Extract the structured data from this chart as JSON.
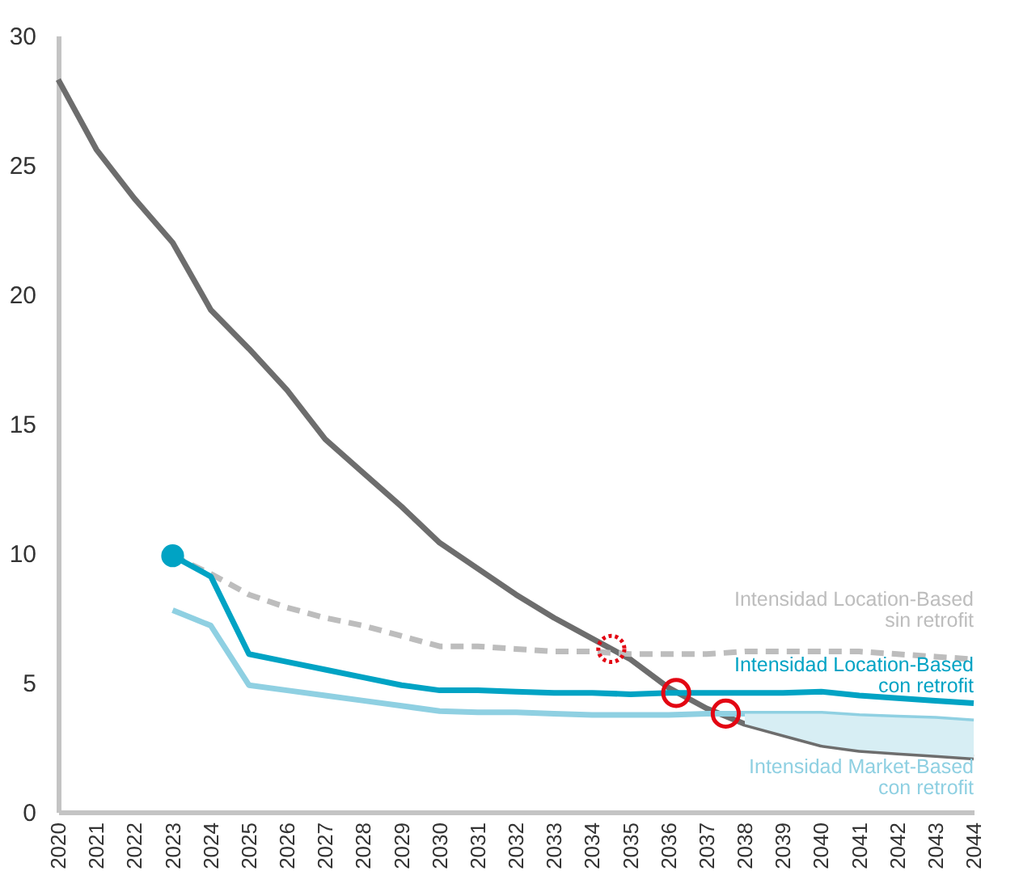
{
  "chart_data": {
    "type": "line",
    "x": [
      2020,
      2021,
      2022,
      2023,
      2024,
      2025,
      2026,
      2027,
      2028,
      2029,
      2030,
      2031,
      2032,
      2033,
      2034,
      2035,
      2036,
      2037,
      2038,
      2039,
      2040,
      2041,
      2042,
      2043,
      2044
    ],
    "xlim": [
      2020,
      2044
    ],
    "xticks": [
      2020,
      2021,
      2022,
      2023,
      2024,
      2025,
      2026,
      2027,
      2028,
      2029,
      2030,
      2031,
      2032,
      2033,
      2034,
      2035,
      2036,
      2037,
      2038,
      2039,
      2040,
      2041,
      2042,
      2043,
      2044
    ],
    "ylim": [
      0,
      30
    ],
    "yticks": [
      0,
      5,
      10,
      15,
      20,
      25,
      30
    ],
    "grid": false,
    "series": [
      {
        "color": "#6d6d6d",
        "values": [
          28.3,
          25.6,
          23.7,
          22.0,
          19.4,
          17.9,
          16.3,
          14.4,
          13.1,
          11.8,
          10.4,
          9.4,
          8.4,
          7.5,
          6.7,
          5.9,
          4.8,
          4.0,
          3.4,
          3.0,
          2.6,
          2.4,
          2.3,
          2.2,
          2.1
        ]
      },
      {
        "name": "Intensidad Location-Based\nsin retrofit",
        "color": "#bdbdbd",
        "line_style": "dashed",
        "values": [
          null,
          null,
          null,
          9.9,
          9.2,
          8.4,
          7.9,
          7.5,
          7.2,
          6.8,
          6.4,
          6.4,
          6.3,
          6.2,
          6.2,
          6.1,
          6.1,
          6.1,
          6.2,
          6.2,
          6.2,
          6.2,
          6.1,
          6.0,
          5.9
        ]
      },
      {
        "name": "Intensidad Location-Based\ncon retrofit",
        "color": "#00a3c4",
        "values": [
          null,
          null,
          null,
          9.9,
          9.1,
          6.1,
          5.8,
          5.5,
          5.2,
          4.9,
          4.7,
          4.7,
          4.65,
          4.6,
          4.6,
          4.55,
          4.6,
          4.6,
          4.6,
          4.6,
          4.65,
          4.5,
          4.4,
          4.3,
          4.2
        ]
      },
      {
        "name": "Intensidad Market-Based\ncon retrofit",
        "color": "#8fd0e2",
        "values": [
          null,
          null,
          null,
          7.8,
          7.2,
          4.9,
          4.7,
          4.5,
          4.3,
          4.1,
          3.9,
          3.85,
          3.85,
          3.8,
          3.75,
          3.75,
          3.75,
          3.8,
          3.8,
          3.8,
          3.8,
          3.7,
          3.65,
          3.6,
          3.5
        ],
        "lower": [
          null,
          null,
          null,
          null,
          null,
          null,
          null,
          null,
          null,
          null,
          null,
          null,
          null,
          null,
          null,
          null,
          null,
          null,
          3.4,
          3.0,
          2.6,
          2.4,
          2.3,
          2.2,
          2.1
        ],
        "upper": [
          null,
          null,
          null,
          null,
          null,
          null,
          null,
          null,
          null,
          null,
          null,
          null,
          null,
          null,
          null,
          null,
          null,
          null,
          3.8,
          3.8,
          3.8,
          3.7,
          3.65,
          3.6,
          3.5
        ]
      },
      {
        "type": "scatter",
        "marker": "circle",
        "color": "#00a3c4",
        "x": [
          2023
        ],
        "values": [
          9.9
        ]
      },
      {
        "type": "scatter",
        "marker": "circle",
        "color": "#e30613",
        "line_style": "dotted",
        "x": [
          2034.5
        ],
        "values": [
          6.3
        ]
      },
      {
        "type": "scatter",
        "marker": "circle",
        "color": "#e30613",
        "line_style": "solid",
        "x": [
          2036.2,
          2037.5
        ],
        "values": [
          4.6,
          3.8
        ]
      }
    ]
  }
}
